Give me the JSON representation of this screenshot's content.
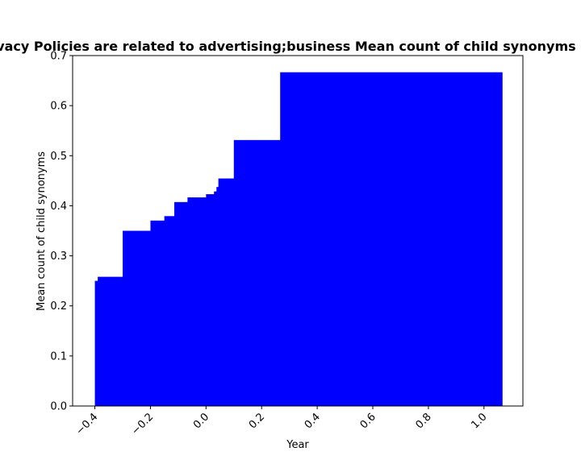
{
  "chart_data": {
    "type": "bar",
    "title": "Percentage of Privacy Policies are related to advertising;business Mean count of child synonyms in privacy policies",
    "xlabel": "Year",
    "ylabel": "Mean count of child synonyms",
    "xlim": [
      -0.48,
      1.14
    ],
    "ylim": [
      0,
      0.7
    ],
    "x_ticks": [
      -0.4,
      -0.2,
      0.0,
      0.2,
      0.4,
      0.6,
      0.8,
      1.0
    ],
    "x_tick_labels": [
      "−0.4",
      "−0.2",
      "0.0",
      "0.2",
      "0.4",
      "0.6",
      "0.8",
      "1.0"
    ],
    "y_ticks": [
      0.0,
      0.1,
      0.2,
      0.3,
      0.4,
      0.5,
      0.6,
      0.7
    ],
    "y_tick_labels": [
      "0.0",
      "0.1",
      "0.2",
      "0.3",
      "0.4",
      "0.5",
      "0.6",
      "0.7"
    ],
    "grid": false,
    "color": "#0000ff",
    "bar_width": 0.8,
    "x": [
      0.0,
      0.0104,
      0.1,
      0.2,
      0.25,
      0.2857,
      0.3333,
      0.4,
      0.4286,
      0.4375,
      0.4444,
      0.5,
      0.6667
    ],
    "values": [
      0.25,
      0.2581,
      0.35,
      0.3704,
      0.3793,
      0.4074,
      0.4167,
      0.4231,
      0.4286,
      0.4375,
      0.4545,
      0.5313,
      0.6667
    ]
  }
}
